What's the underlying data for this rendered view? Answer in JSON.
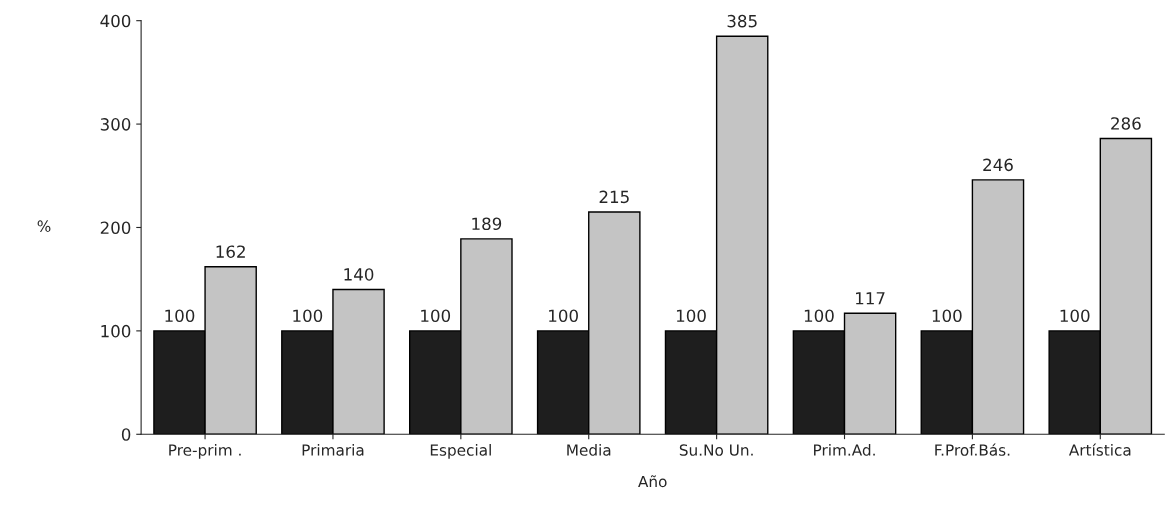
{
  "chart_data": {
    "type": "bar",
    "xlabel": "Año",
    "ylabel": "%",
    "categories": [
      "Pre-prim .",
      "Primaria",
      "Especial",
      "Media",
      "Su.No Un.",
      "Prim.Ad.",
      "F.Prof.Bás.",
      "Artística"
    ],
    "series": [
      {
        "color": "#1e1e1e",
        "values": [
          100,
          100,
          100,
          100,
          100,
          100,
          100,
          100
        ]
      },
      {
        "color": "#c4c4c4",
        "values": [
          162,
          140,
          189,
          215,
          385,
          117,
          246,
          286
        ]
      }
    ],
    "ylim": [
      0,
      400
    ],
    "yticks": [
      0,
      100,
      200,
      300,
      400
    ],
    "data_labels": true,
    "grid": false,
    "legend": false
  }
}
